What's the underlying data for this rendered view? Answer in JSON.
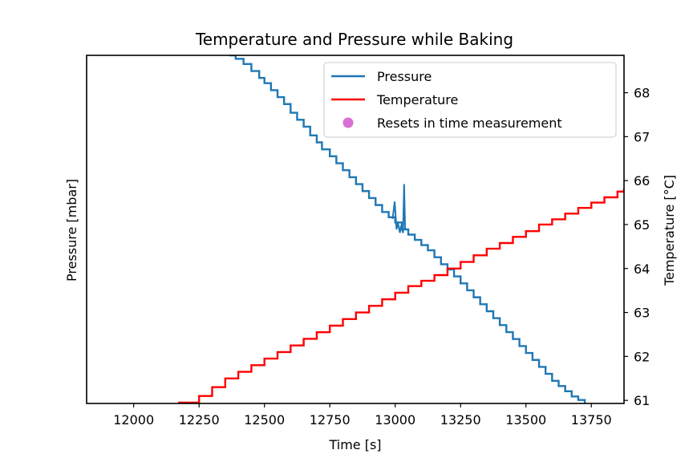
{
  "chart_data": {
    "type": "line",
    "title": "Temperature and Pressure while Baking",
    "xlabel": "Time [s]",
    "ylabel_left": "Pressure [mbar]",
    "ylabel_right": "Temperature [°C]",
    "xlim": [
      11820,
      13875
    ],
    "ylim_left": [
      0,
      1
    ],
    "ylim_right": [
      60.93,
      68.85
    ],
    "x_ticks": [
      12000,
      12250,
      12500,
      12750,
      13000,
      13250,
      13500,
      13750
    ],
    "y_right_ticks": [
      61,
      62,
      63,
      64,
      65,
      66,
      67,
      68
    ],
    "grid": false,
    "legend_position": "top-right",
    "legend": {
      "pressure": "Pressure",
      "temperature": "Temperature",
      "resets": "Resets in time measurement"
    },
    "colors": {
      "pressure": "#1f77b4",
      "temperature": "#ff0000",
      "resets": "#da70d6"
    },
    "series": [
      {
        "name": "Pressure",
        "axis": "left",
        "x": [
          12365,
          12390,
          12420,
          12450,
          12480,
          12500,
          12525,
          12550,
          12575,
          12600,
          12625,
          12650,
          12675,
          12700,
          12720,
          12750,
          12775,
          12800,
          12825,
          12850,
          12875,
          12900,
          12925,
          12950,
          12975,
          13000,
          13025,
          13050,
          13075,
          13100,
          13125,
          13150,
          13175,
          13200,
          13225,
          13250,
          13275,
          13300,
          13325,
          13350,
          13375,
          13400,
          13425,
          13450,
          13475,
          13500,
          13525,
          13550,
          13575,
          13600,
          13625,
          13650,
          13675,
          13700,
          13725
        ],
        "y": [
          1.0,
          0.99,
          0.975,
          0.955,
          0.935,
          0.92,
          0.9,
          0.88,
          0.86,
          0.835,
          0.815,
          0.795,
          0.77,
          0.75,
          0.73,
          0.71,
          0.69,
          0.67,
          0.65,
          0.63,
          0.61,
          0.59,
          0.57,
          0.55,
          0.535,
          0.52,
          0.5,
          0.485,
          0.47,
          0.455,
          0.44,
          0.42,
          0.4,
          0.385,
          0.365,
          0.345,
          0.325,
          0.305,
          0.285,
          0.265,
          0.245,
          0.225,
          0.205,
          0.185,
          0.165,
          0.145,
          0.125,
          0.105,
          0.085,
          0.065,
          0.05,
          0.035,
          0.02,
          0.01,
          0.0
        ]
      },
      {
        "name": "Temperature",
        "axis": "right",
        "x": [
          12170,
          12250,
          12300,
          12350,
          12400,
          12450,
          12500,
          12550,
          12600,
          12650,
          12700,
          12750,
          12800,
          12850,
          12900,
          12950,
          13000,
          13050,
          13100,
          13150,
          13200,
          13250,
          13300,
          13350,
          13400,
          13450,
          13500,
          13550,
          13600,
          13650,
          13700,
          13750,
          13800,
          13850,
          13875
        ],
        "y": [
          60.95,
          61.1,
          61.3,
          61.5,
          61.65,
          61.8,
          61.95,
          62.1,
          62.25,
          62.4,
          62.55,
          62.7,
          62.85,
          63.0,
          63.15,
          63.3,
          63.45,
          63.6,
          63.72,
          63.85,
          64.0,
          64.15,
          64.3,
          64.45,
          64.58,
          64.72,
          64.85,
          65.0,
          65.12,
          65.25,
          65.38,
          65.5,
          65.62,
          65.75,
          65.82
        ]
      }
    ],
    "spike": {
      "x": [
        12990,
        12998,
        13005,
        13010,
        13018,
        13022,
        13030,
        13034,
        13038
      ],
      "y": [
        0.53,
        0.58,
        0.5,
        0.52,
        0.49,
        0.51,
        0.49,
        0.63,
        0.5
      ]
    }
  }
}
